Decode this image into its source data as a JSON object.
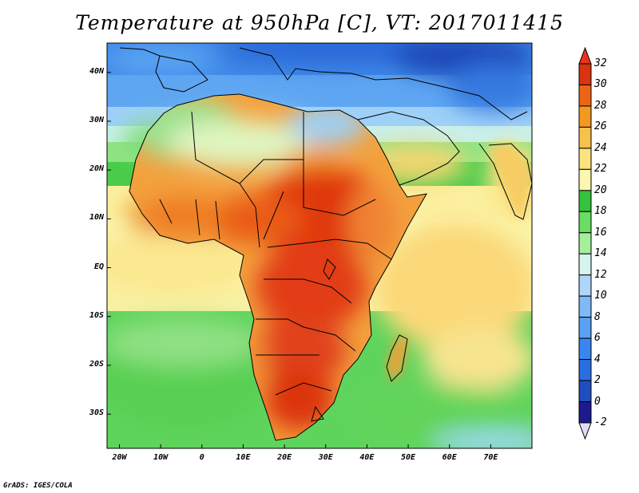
{
  "title": "Temperature at 950hPa [C], VT: 2017011415",
  "footer": "GrADS: IGES/COLA",
  "chart_data": {
    "type": "heatmap",
    "variable": "Temperature at 950hPa",
    "units": "C",
    "valid_time": "2017011415",
    "lon_range": [
      -23,
      80
    ],
    "lat_range": [
      -37,
      46
    ],
    "x_ticks": [
      {
        "value": -20,
        "label": "20W"
      },
      {
        "value": -10,
        "label": "10W"
      },
      {
        "value": 0,
        "label": "0"
      },
      {
        "value": 10,
        "label": "10E"
      },
      {
        "value": 20,
        "label": "20E"
      },
      {
        "value": 30,
        "label": "30E"
      },
      {
        "value": 40,
        "label": "40E"
      },
      {
        "value": 50,
        "label": "50E"
      },
      {
        "value": 60,
        "label": "60E"
      },
      {
        "value": 70,
        "label": "70E"
      }
    ],
    "y_ticks": [
      {
        "value": 40,
        "label": "40N"
      },
      {
        "value": 30,
        "label": "30N"
      },
      {
        "value": 20,
        "label": "20N"
      },
      {
        "value": 10,
        "label": "10N"
      },
      {
        "value": 0,
        "label": "EQ"
      },
      {
        "value": -10,
        "label": "10S"
      },
      {
        "value": -20,
        "label": "20S"
      },
      {
        "value": -30,
        "label": "30S"
      }
    ],
    "colorbar": {
      "levels": [
        -2,
        0,
        2,
        4,
        6,
        8,
        10,
        12,
        14,
        16,
        18,
        20,
        22,
        24,
        26,
        28,
        30,
        32
      ],
      "colors": [
        "#e1dcf5",
        "#1c1a8c",
        "#1e4ec0",
        "#2a6fe0",
        "#3a86ef",
        "#5aa1f5",
        "#7fb9f8",
        "#aed6fb",
        "#d6f5f0",
        "#a6ef9a",
        "#68de62",
        "#35c23d",
        "#fbf7b0",
        "#fbe27e",
        "#f8c04c",
        "#f39820",
        "#ec6515",
        "#d9330f",
        "#e8351a"
      ]
    }
  }
}
